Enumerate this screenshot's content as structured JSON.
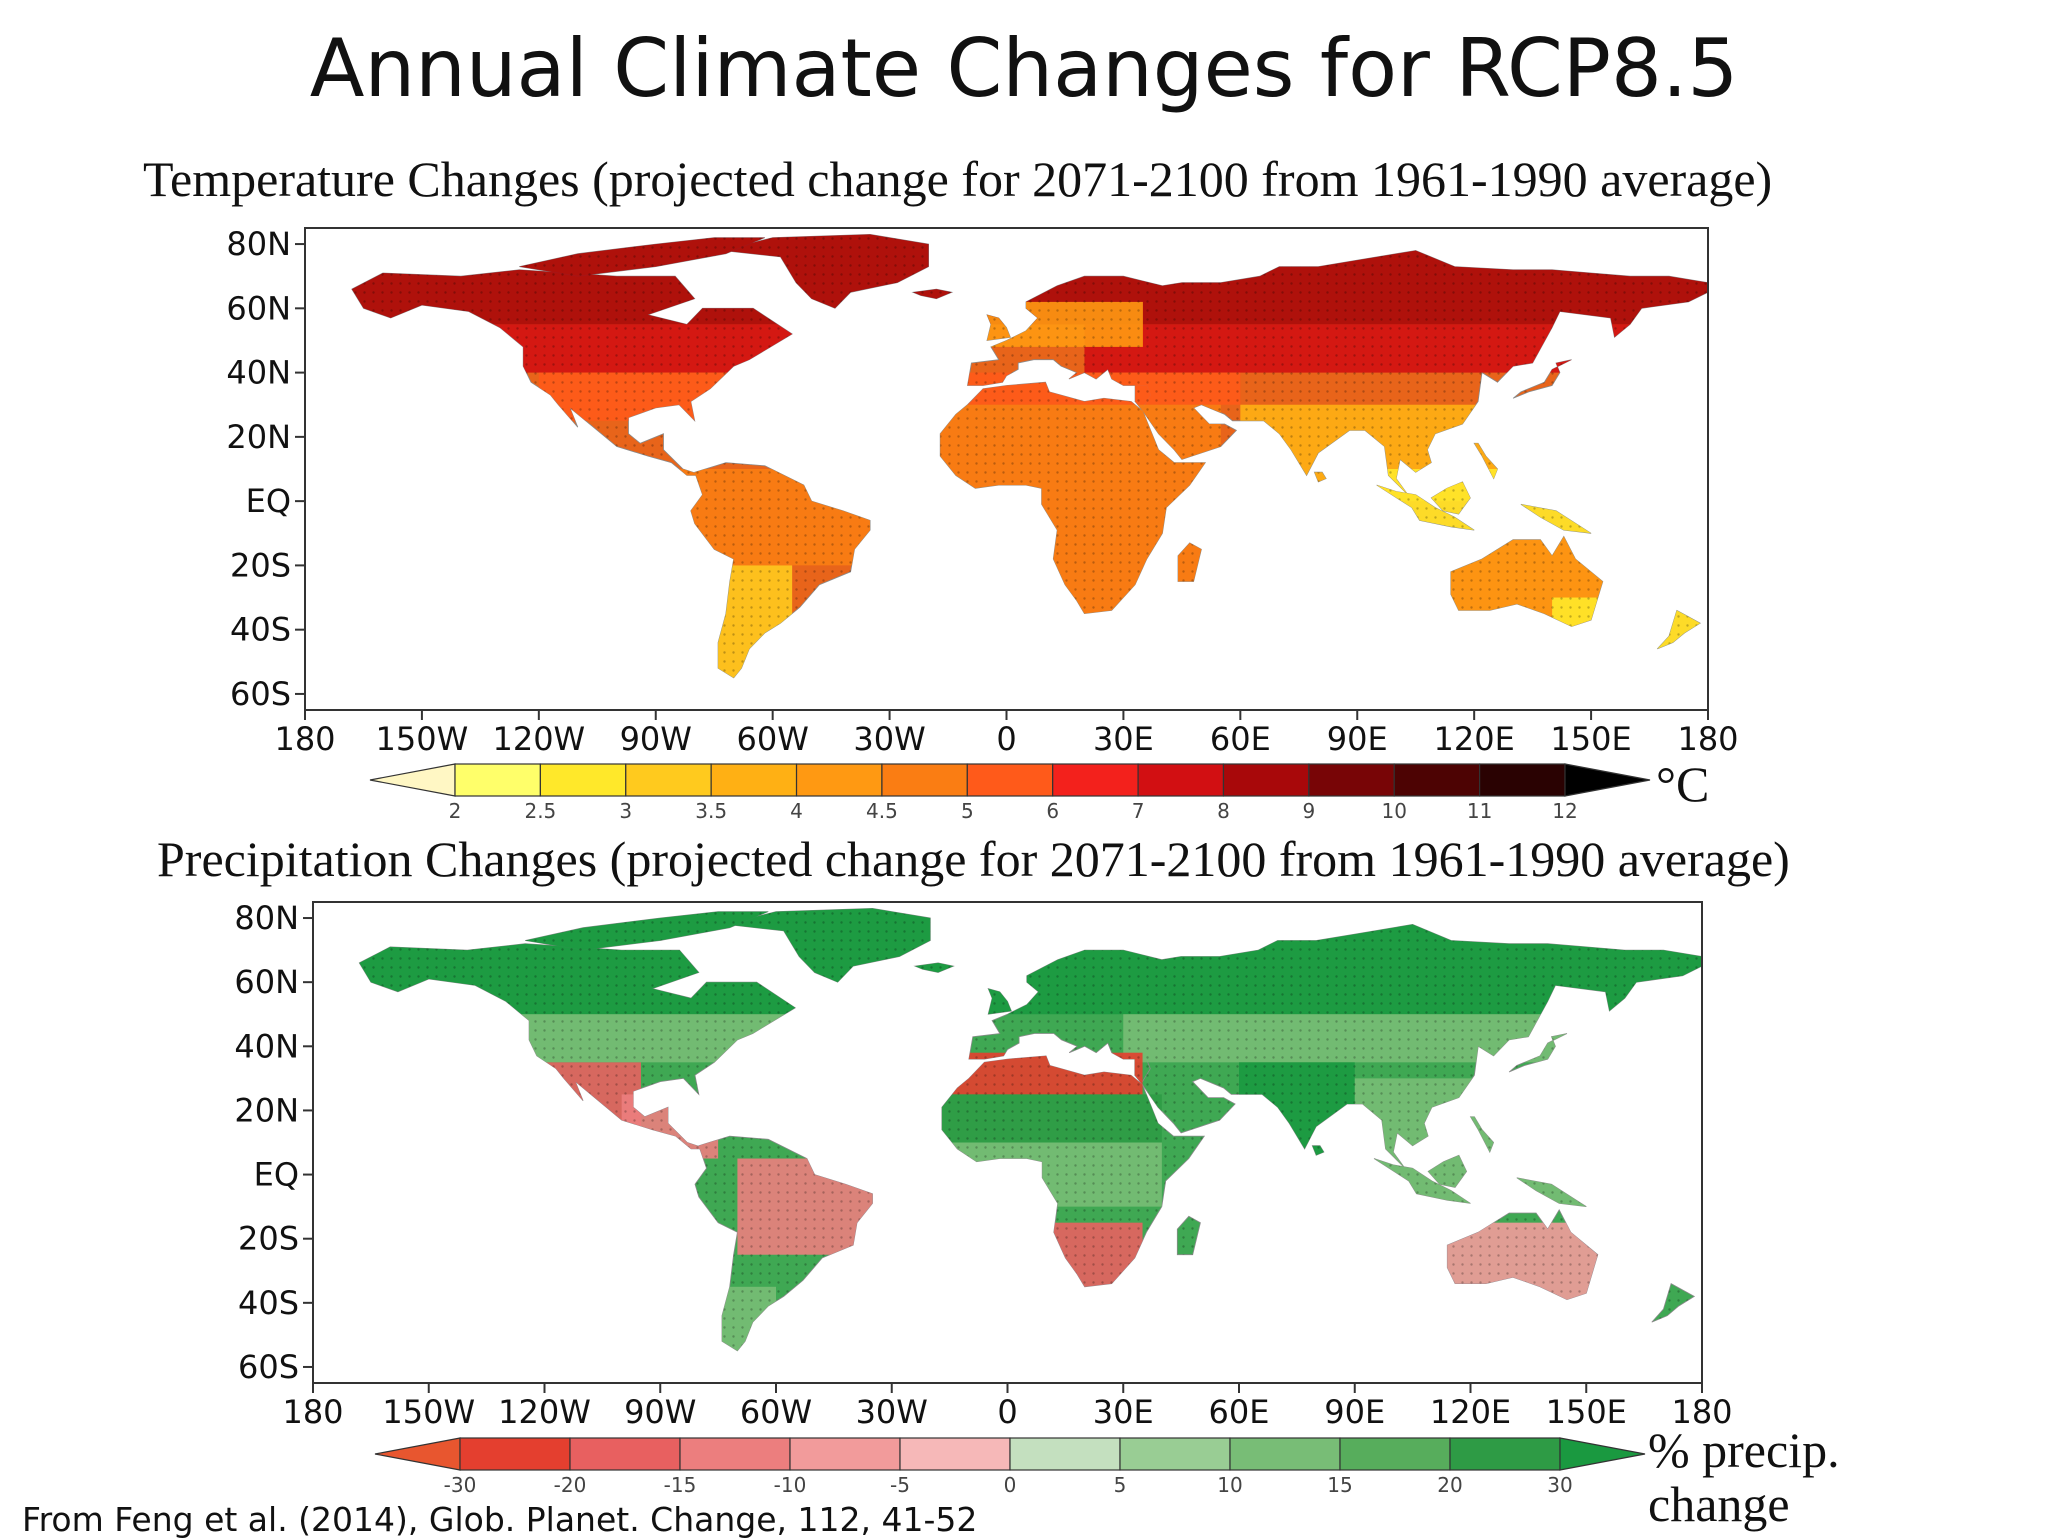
{
  "title": "Annual Climate Changes for RCP8.5",
  "source": "From Feng et al. (2014), Glob. Planet. Change, 112, 41-52",
  "maps": [
    {
      "subtitle": "Temperature Changes (projected change for 2071-2100 from 1961-1990 average)",
      "unit": "°C",
      "unit_lines": [
        "°C"
      ],
      "lat_ticks": [
        "80N",
        "60N",
        "40N",
        "20N",
        "EQ",
        "20S",
        "40S",
        "60S"
      ],
      "lon_ticks": [
        "180",
        "150W",
        "120W",
        "90W",
        "60W",
        "30W",
        "0",
        "30E",
        "60E",
        "90E",
        "120E",
        "150E",
        "180"
      ],
      "colorbar_ticks": [
        "2",
        "2.5",
        "3",
        "3.5",
        "4",
        "4.5",
        "5",
        "6",
        "7",
        "8",
        "9",
        "10",
        "11",
        "12"
      ],
      "colorbar_colors": [
        "#fff7c4",
        "#ffff6a",
        "#ffe82a",
        "#ffca1e",
        "#ffb014",
        "#ff9912",
        "#fa7d13",
        "#ff5a1a",
        "#f3211c",
        "#d20f12",
        "#a8080a",
        "#780506",
        "#4d0303",
        "#2a0202",
        "#000000"
      ],
      "land_color": "#e8641a",
      "ocean_color": "#ffffff"
    },
    {
      "subtitle": "Precipitation Changes (projected change for 2071-2100 from 1961-1990 average)",
      "unit": "% precip. change",
      "unit_lines": [
        "% precip.",
        "change"
      ],
      "lat_ticks": [
        "80N",
        "60N",
        "40N",
        "20N",
        "EQ",
        "20S",
        "40S",
        "60S"
      ],
      "lon_ticks": [
        "180",
        "150W",
        "120W",
        "90W",
        "60W",
        "30W",
        "0",
        "30E",
        "60E",
        "90E",
        "120E",
        "150E",
        "180"
      ],
      "colorbar_ticks": [
        "-30",
        "-20",
        "-15",
        "-10",
        "-5",
        "0",
        "5",
        "10",
        "15",
        "20",
        "30"
      ],
      "colorbar_colors": [
        "#e8562f",
        "#e43f2f",
        "#e86060",
        "#ec7e7e",
        "#f29b9b",
        "#f6b8b8",
        "#c4e0bf",
        "#99cd94",
        "#78bd76",
        "#57ad5c",
        "#2e9b45",
        "#1a9940"
      ],
      "land_color": "#3fa853",
      "ocean_color": "#ffffff"
    }
  ]
}
